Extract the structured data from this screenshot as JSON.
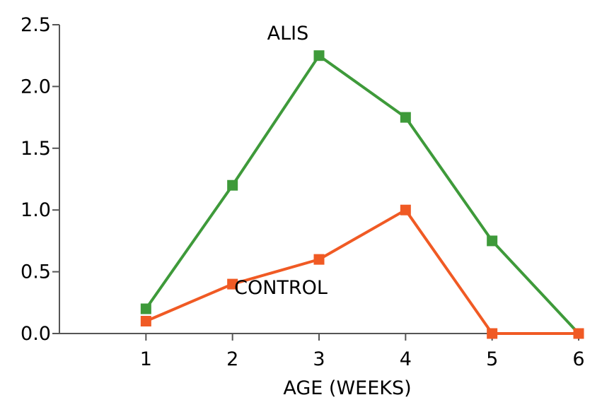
{
  "chart_data": {
    "type": "line",
    "title": "",
    "xlabel": "AGE (WEEKS)",
    "ylabel": "",
    "x": [
      1,
      2,
      3,
      4,
      5,
      6
    ],
    "xlim": [
      0,
      6
    ],
    "ylim": [
      0,
      2.5
    ],
    "x_ticks": [
      "1",
      "2",
      "3",
      "4",
      "5",
      "6"
    ],
    "y_ticks": [
      "0.0",
      "0.5",
      "1.0",
      "1.5",
      "2.0",
      "2.5"
    ],
    "grid": false,
    "legend": "none; series are labeled directly on the plot",
    "series": [
      {
        "name": "ALIS",
        "color": "#3e9a3a",
        "marker": "square",
        "values": [
          0.2,
          1.2,
          2.25,
          1.75,
          0.75,
          0.0
        ]
      },
      {
        "name": "CONTROL",
        "color": "#f05a24",
        "marker": "square",
        "values": [
          0.1,
          0.4,
          0.6,
          1.0,
          0.0,
          0.0
        ]
      }
    ]
  }
}
